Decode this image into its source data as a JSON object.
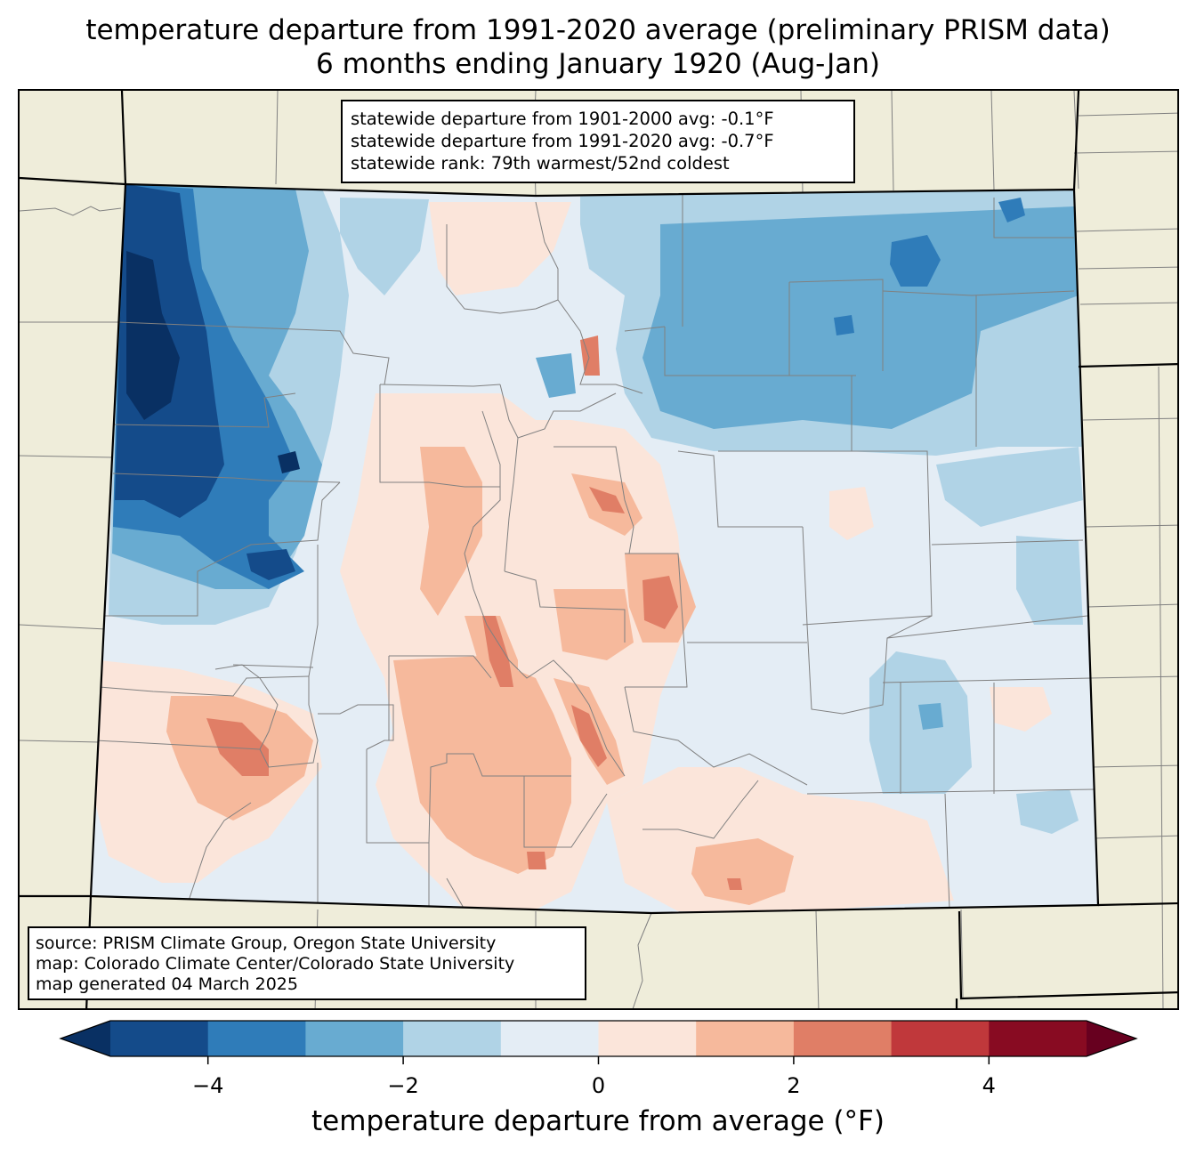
{
  "title": {
    "line1": "temperature departure from 1991-2020 average (preliminary PRISM data)",
    "line2": "6 months ending January 1920 (Aug-Jan)"
  },
  "stats": {
    "line1": "statewide departure from 1901-2000 avg: -0.1°F",
    "line2": "statewide departure from 1991-2020 avg: -0.7°F",
    "line3": "statewide rank: 79th warmest/52nd coldest"
  },
  "source": {
    "line1": "source: PRISM Climate Group, Oregon State University",
    "line2": "map: Colorado Climate Center/Colorado State University",
    "line3": "map generated 04 March 2025"
  },
  "colorbar": {
    "label": "temperature departure from average (°F)",
    "min": -5,
    "max": 5,
    "ticks": [
      "−4",
      "−2",
      "0",
      "2",
      "4"
    ],
    "tick_values": [
      -4,
      -2,
      0,
      2,
      4
    ],
    "bins": [
      {
        "from": -5,
        "to": -4,
        "color": "#144b8a"
      },
      {
        "from": -4,
        "to": -3,
        "color": "#2f7cb9"
      },
      {
        "from": -3,
        "to": -2,
        "color": "#68abd1"
      },
      {
        "from": -2,
        "to": -1,
        "color": "#b0d3e6"
      },
      {
        "from": -1,
        "to": 0,
        "color": "#e4edf5"
      },
      {
        "from": 0,
        "to": 1,
        "color": "#fbe5da"
      },
      {
        "from": 1,
        "to": 2,
        "color": "#f6b99c"
      },
      {
        "from": 2,
        "to": 3,
        "color": "#e07e66"
      },
      {
        "from": 3,
        "to": 4,
        "color": "#c0383b"
      },
      {
        "from": 4,
        "to": 5,
        "color": "#880b22"
      }
    ],
    "under_color": "#093063",
    "over_color": "#67001f"
  },
  "map": {
    "land_color": "#efedda",
    "state_border_color": "#000000",
    "county_border_color": "#808080"
  }
}
